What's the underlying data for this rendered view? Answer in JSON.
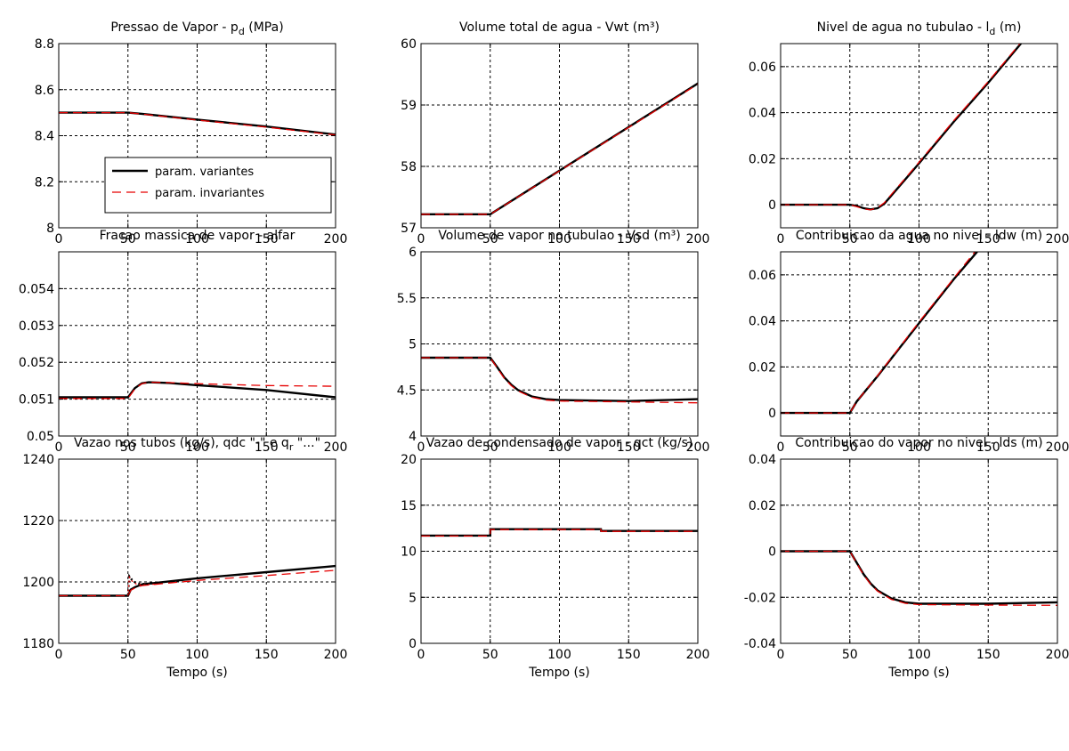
{
  "figure": {
    "xlabel": "Tempo (s)",
    "legend": {
      "placement": "lower-right of first panel",
      "entries": [
        {
          "label": "param. variantes",
          "color": "#000000",
          "style": "solid"
        },
        {
          "label": "param. invariantes",
          "color": "#e60000",
          "style": "dashed"
        }
      ]
    }
  },
  "chart_data": [
    {
      "type": "line",
      "title": "Pressao de Vapor - p",
      "title_sub": "d",
      "title_tail": " (MPa)",
      "xlim": [
        0,
        200
      ],
      "ylim": [
        8,
        8.8
      ],
      "xticks": [
        0,
        50,
        100,
        150,
        200
      ],
      "yticks": [
        8,
        8.2,
        8.4,
        8.6,
        8.8
      ],
      "ytick_labels": [
        "8",
        "8.2",
        "8.4",
        "8.6",
        "8.8"
      ],
      "grid": true,
      "series": [
        {
          "name": "param. variantes",
          "color": "#000000",
          "x": [
            0,
            50,
            60,
            100,
            150,
            200
          ],
          "y": [
            8.5,
            8.5,
            8.495,
            8.47,
            8.44,
            8.405
          ]
        },
        {
          "name": "param. invariantes",
          "color": "#e60000",
          "x": [
            0,
            50,
            60,
            100,
            150,
            200
          ],
          "y": [
            8.5,
            8.5,
            8.494,
            8.468,
            8.437,
            8.403
          ]
        }
      ]
    },
    {
      "type": "line",
      "title": "Volume total de agua - Vwt (m³)",
      "xlim": [
        0,
        200
      ],
      "ylim": [
        57,
        60
      ],
      "xticks": [
        0,
        50,
        100,
        150,
        200
      ],
      "yticks": [
        57,
        58,
        59,
        60
      ],
      "ytick_labels": [
        "57",
        "58",
        "59",
        "60"
      ],
      "grid": true,
      "series": [
        {
          "name": "param. variantes",
          "color": "#000000",
          "x": [
            0,
            50,
            200
          ],
          "y": [
            57.22,
            57.22,
            59.35
          ]
        },
        {
          "name": "param. invariantes",
          "color": "#e60000",
          "x": [
            0,
            50,
            200
          ],
          "y": [
            57.22,
            57.22,
            59.34
          ]
        }
      ]
    },
    {
      "type": "line",
      "title": "Nivel de agua no tubulao - l",
      "title_sub": "d",
      "title_tail": " (m)",
      "xlim": [
        0,
        200
      ],
      "ylim": [
        -0.01,
        0.07
      ],
      "xticks": [
        0,
        50,
        100,
        150,
        200
      ],
      "yticks": [
        0,
        0.02,
        0.04,
        0.06
      ],
      "ytick_labels": [
        "0",
        "0.02",
        "0.04",
        "0.06"
      ],
      "grid": true,
      "series": [
        {
          "name": "param. variantes",
          "color": "#000000",
          "x": [
            0,
            50,
            55,
            60,
            65,
            70,
            75,
            80,
            90,
            100,
            125,
            150,
            175
          ],
          "y": [
            0,
            0,
            -0.0005,
            -0.0015,
            -0.002,
            -0.0015,
            0.0005,
            0.004,
            0.011,
            0.018,
            0.036,
            0.053,
            0.071
          ]
        },
        {
          "name": "param. invariantes",
          "color": "#e60000",
          "x": [
            0,
            50,
            55,
            60,
            65,
            70,
            75,
            80,
            90,
            100,
            125,
            150,
            175
          ],
          "y": [
            0,
            0,
            -0.0008,
            -0.0018,
            -0.0022,
            -0.0013,
            0.0009,
            0.0045,
            0.0115,
            0.0185,
            0.0365,
            0.0535,
            0.0715
          ]
        }
      ]
    },
    {
      "type": "line",
      "title": "Fracao massica de vapor - alfar",
      "xlim": [
        0,
        200
      ],
      "ylim": [
        0.05,
        0.055
      ],
      "xticks": [
        0,
        50,
        100,
        150,
        200
      ],
      "yticks": [
        0.05,
        0.051,
        0.052,
        0.053,
        0.054
      ],
      "ytick_labels": [
        "0.05",
        "0.051",
        "0.052",
        "0.053",
        "0.054"
      ],
      "grid": true,
      "series": [
        {
          "name": "param. variantes",
          "color": "#000000",
          "x": [
            0,
            50,
            55,
            60,
            65,
            80,
            100,
            150,
            200
          ],
          "y": [
            0.05105,
            0.05105,
            0.0513,
            0.05143,
            0.05146,
            0.05144,
            0.05138,
            0.05125,
            0.05105
          ]
        },
        {
          "name": "param. invariantes",
          "color": "#e60000",
          "x": [
            0,
            50,
            55,
            60,
            65,
            80,
            100,
            150,
            200
          ],
          "y": [
            0.05102,
            0.05102,
            0.05128,
            0.05142,
            0.05146,
            0.05145,
            0.05142,
            0.05137,
            0.05135
          ]
        }
      ]
    },
    {
      "type": "line",
      "title": "Volume de vapor no tubulao - Vsd (m³)",
      "xlim": [
        0,
        200
      ],
      "ylim": [
        4,
        6
      ],
      "xticks": [
        0,
        50,
        100,
        150,
        200
      ],
      "yticks": [
        4,
        4.5,
        5,
        5.5,
        6
      ],
      "ytick_labels": [
        "4",
        "4.5",
        "5",
        "5.5",
        "6"
      ],
      "grid": true,
      "series": [
        {
          "name": "param. variantes",
          "color": "#000000",
          "x": [
            0,
            50,
            55,
            60,
            65,
            70,
            80,
            90,
            100,
            150,
            200
          ],
          "y": [
            4.85,
            4.85,
            4.75,
            4.64,
            4.56,
            4.5,
            4.43,
            4.4,
            4.39,
            4.38,
            4.4
          ]
        },
        {
          "name": "param. invariantes",
          "color": "#e60000",
          "x": [
            0,
            50,
            55,
            60,
            65,
            70,
            80,
            90,
            100,
            150,
            200
          ],
          "y": [
            4.85,
            4.85,
            4.74,
            4.63,
            4.55,
            4.49,
            4.42,
            4.39,
            4.38,
            4.37,
            4.36
          ]
        }
      ]
    },
    {
      "type": "line",
      "title": "Contribuicao da agua no nivel - ldw (m)",
      "xlim": [
        0,
        200
      ],
      "ylim": [
        -0.01,
        0.07
      ],
      "xticks": [
        0,
        50,
        100,
        150,
        200
      ],
      "yticks": [
        0,
        0.02,
        0.04,
        0.06
      ],
      "ytick_labels": [
        "0",
        "0.02",
        "0.04",
        "0.06"
      ],
      "grid": true,
      "series": [
        {
          "name": "param. variantes",
          "color": "#000000",
          "x": [
            0,
            50,
            55,
            70,
            100,
            125,
            142
          ],
          "y": [
            0,
            0,
            0.005,
            0.016,
            0.039,
            0.058,
            0.07
          ]
        },
        {
          "name": "param. invariantes",
          "color": "#e60000",
          "x": [
            0,
            50,
            55,
            70,
            100,
            125,
            141
          ],
          "y": [
            0,
            0,
            0.005,
            0.0162,
            0.0395,
            0.0585,
            0.0705
          ]
        }
      ]
    },
    {
      "type": "line",
      "title": "Vazao nos tubos (kg/s), qdc \"-\" e q",
      "title_sub": "r",
      "title_tail": " \"...\"",
      "xlim": [
        0,
        200
      ],
      "ylim": [
        1180,
        1240
      ],
      "xticks": [
        0,
        50,
        100,
        150,
        200
      ],
      "yticks": [
        1180,
        1200,
        1220,
        1240
      ],
      "ytick_labels": [
        "1180",
        "1200",
        "1220",
        "1240"
      ],
      "grid": true,
      "series": [
        {
          "name": "qdc (param. variantes)",
          "color": "#000000",
          "style": "solid",
          "x": [
            0,
            50,
            52,
            55,
            60,
            100,
            150,
            200
          ],
          "y": [
            1195.5,
            1195.5,
            1197.5,
            1198.3,
            1199.2,
            1201.2,
            1203.2,
            1205.2
          ]
        },
        {
          "name": "qdc (param. invariantes)",
          "color": "#e60000",
          "style": "dashed",
          "x": [
            0,
            50,
            52,
            55,
            60,
            100,
            150,
            200
          ],
          "y": [
            1195.5,
            1195.5,
            1197.3,
            1198,
            1198.8,
            1200.5,
            1202.1,
            1203.8
          ]
        },
        {
          "name": "qr (param. variantes)",
          "color": "#000000",
          "style": "dotted",
          "x": [
            50,
            51,
            53,
            56,
            60,
            70
          ],
          "y": [
            1195.5,
            1201.8,
            1200.6,
            1199.6,
            1199.3,
            1199.6
          ]
        },
        {
          "name": "qr (param. invariantes)",
          "color": "#e60000",
          "style": "dotted",
          "x": [
            50,
            51,
            53,
            56,
            60,
            70
          ],
          "y": [
            1195.5,
            1201.5,
            1200.3,
            1199.3,
            1199,
            1199.3
          ]
        }
      ]
    },
    {
      "type": "line",
      "title": "Vazao de condensado de vapor - qct (kg/s)",
      "xlim": [
        0,
        200
      ],
      "ylim": [
        0,
        20
      ],
      "xticks": [
        0,
        50,
        100,
        150,
        200
      ],
      "yticks": [
        0,
        5,
        10,
        15,
        20
      ],
      "ytick_labels": [
        "0",
        "5",
        "10",
        "15",
        "20"
      ],
      "grid": true,
      "series": [
        {
          "name": "param. variantes",
          "color": "#000000",
          "x": [
            0,
            50,
            50.1,
            100,
            130,
            130.1,
            200
          ],
          "y": [
            11.7,
            11.7,
            12.4,
            12.4,
            12.4,
            12.2,
            12.2
          ]
        },
        {
          "name": "param. invariantes",
          "color": "#e60000",
          "x": [
            0,
            50,
            50.1,
            100,
            130,
            130.1,
            200
          ],
          "y": [
            11.65,
            11.65,
            12.35,
            12.35,
            12.35,
            12.15,
            12.15
          ]
        }
      ]
    },
    {
      "type": "line",
      "title": "Contribuicao do vapor no nivel - lds (m)",
      "xlim": [
        0,
        200
      ],
      "ylim": [
        -0.04,
        0.04
      ],
      "xticks": [
        0,
        50,
        100,
        150,
        200
      ],
      "yticks": [
        -0.04,
        -0.02,
        0,
        0.02,
        0.04
      ],
      "ytick_labels": [
        "-0.04",
        "-0.02",
        "0",
        "0.02",
        "0.04"
      ],
      "grid": true,
      "series": [
        {
          "name": "param. variantes",
          "color": "#000000",
          "x": [
            0,
            50,
            55,
            60,
            65,
            70,
            80,
            90,
            100,
            150,
            200
          ],
          "y": [
            0,
            0,
            -0.005,
            -0.01,
            -0.014,
            -0.017,
            -0.0205,
            -0.0222,
            -0.0228,
            -0.0228,
            -0.0222
          ]
        },
        {
          "name": "param. invariantes",
          "color": "#e60000",
          "x": [
            0,
            50,
            55,
            60,
            65,
            70,
            80,
            90,
            100,
            150,
            200
          ],
          "y": [
            0,
            0,
            -0.0052,
            -0.0103,
            -0.0143,
            -0.0173,
            -0.0209,
            -0.0226,
            -0.0232,
            -0.0234,
            -0.0235
          ]
        }
      ]
    }
  ]
}
